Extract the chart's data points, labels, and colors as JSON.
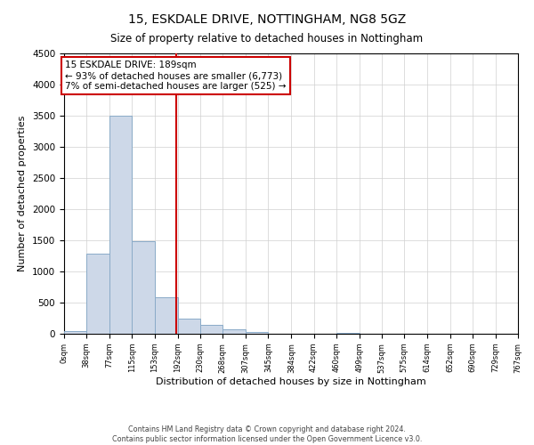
{
  "title": "15, ESKDALE DRIVE, NOTTINGHAM, NG8 5GZ",
  "subtitle": "Size of property relative to detached houses in Nottingham",
  "xlabel": "Distribution of detached houses by size in Nottingham",
  "ylabel": "Number of detached properties",
  "footnote1": "Contains HM Land Registry data © Crown copyright and database right 2024.",
  "footnote2": "Contains public sector information licensed under the Open Government Licence v3.0.",
  "bar_edges": [
    0,
    38,
    77,
    115,
    153,
    192,
    230,
    268,
    307,
    345,
    384,
    422,
    460,
    499,
    537,
    575,
    614,
    652,
    690,
    729,
    767
  ],
  "bar_heights": [
    50,
    1280,
    3500,
    1480,
    580,
    250,
    140,
    75,
    30,
    5,
    0,
    0,
    15,
    0,
    0,
    0,
    0,
    0,
    0,
    0
  ],
  "bar_color": "#cdd8e8",
  "bar_edgecolor": "#8aabc8",
  "property_value": 189,
  "property_line_color": "#cc0000",
  "annotation_line1": "15 ESKDALE DRIVE: 189sqm",
  "annotation_line2": "← 93% of detached houses are smaller (6,773)",
  "annotation_line3": "7% of semi-detached houses are larger (525) →",
  "annotation_box_color": "#ffffff",
  "annotation_border_color": "#cc0000",
  "ylim": [
    0,
    4500
  ],
  "yticks": [
    0,
    500,
    1000,
    1500,
    2000,
    2500,
    3000,
    3500,
    4000,
    4500
  ],
  "tick_labels": [
    "0sqm",
    "38sqm",
    "77sqm",
    "115sqm",
    "153sqm",
    "192sqm",
    "230sqm",
    "268sqm",
    "307sqm",
    "345sqm",
    "384sqm",
    "422sqm",
    "460sqm",
    "499sqm",
    "537sqm",
    "575sqm",
    "614sqm",
    "652sqm",
    "690sqm",
    "729sqm",
    "767sqm"
  ],
  "grid_color": "#d0d0d0",
  "background_color": "#ffffff"
}
